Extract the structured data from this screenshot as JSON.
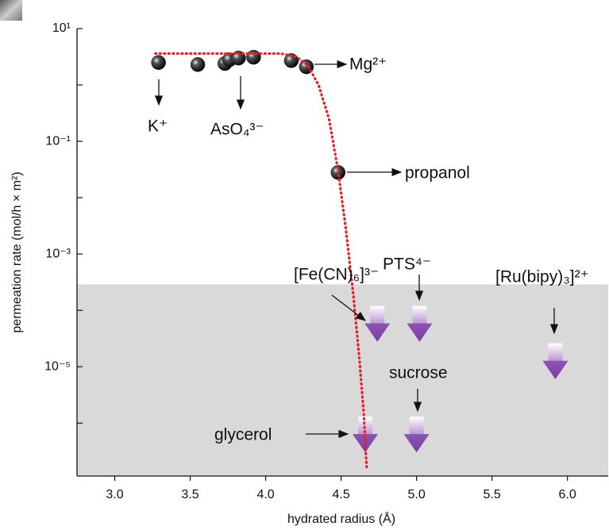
{
  "chart_data": {
    "type": "scatter",
    "xlabel": "hydrated radius (Å)",
    "ylabel": "permeation rate (mol/h × m²)",
    "xlim": [
      2.75,
      6.27
    ],
    "xticks": [
      {
        "value": 3,
        "label": "3.0"
      },
      {
        "value": 3.5,
        "label": "3.5"
      },
      {
        "value": 4,
        "label": "4.0"
      },
      {
        "value": 4.5,
        "label": "4.5"
      },
      {
        "value": 5,
        "label": "5.0"
      },
      {
        "value": 5.5,
        "label": "5.5"
      },
      {
        "value": 6,
        "label": "6.0"
      }
    ],
    "ylim": [
      1.15e-07,
      10
    ],
    "yscale": "log",
    "yticks": [
      {
        "value": 10,
        "label": "10¹"
      },
      {
        "value": 1,
        "label": null
      },
      {
        "value": 0.1,
        "label": "10⁻¹"
      },
      {
        "value": 0.01,
        "label": null
      },
      {
        "value": 0.001,
        "label": "10⁻³"
      },
      {
        "value": 0.0001,
        "label": null
      },
      {
        "value": 1e-05,
        "label": "10⁻⁵"
      },
      {
        "value": 1e-06,
        "label": null
      }
    ],
    "shaded_below": 0.00029,
    "shade_color": "#d9d9d9",
    "points": {
      "color": "#1a1a1a",
      "x": [
        3.29,
        3.55,
        3.73,
        3.76,
        3.82,
        3.92,
        4.17,
        4.27,
        4.48
      ],
      "values": [
        2.5,
        2.3,
        2.4,
        2.8,
        3.0,
        3.1,
        2.7,
        2.1,
        0.028
      ]
    },
    "fit": {
      "color": "#e8202a",
      "x": [
        3.27,
        4.1,
        4.2,
        4.28,
        4.35,
        4.42,
        4.48,
        4.53,
        4.58,
        4.62,
        4.65,
        4.67
      ],
      "values": [
        3.6,
        3.6,
        3.2,
        2.2,
        1.0,
        0.25,
        0.03,
        0.003,
        0.0002,
        1.5e-05,
        1.5e-06,
        1.5e-07
      ]
    },
    "upper_limits": {
      "color": "#7b3fa6",
      "x": [
        4.74,
        5.02,
        5.92,
        5.0,
        4.66
      ],
      "values": [
        0.00012,
        0.00012,
        2.6e-05,
        1.3e-06,
        1.3e-06
      ]
    },
    "annotations": [
      "K⁺",
      "AsO₄³⁻",
      "Mg²⁺",
      "propanol",
      "[Fe(CN)₆]³⁻",
      "PTS⁴⁻",
      "[Ru(bipy)₃]²⁺",
      "sucrose",
      "glycerol"
    ]
  }
}
